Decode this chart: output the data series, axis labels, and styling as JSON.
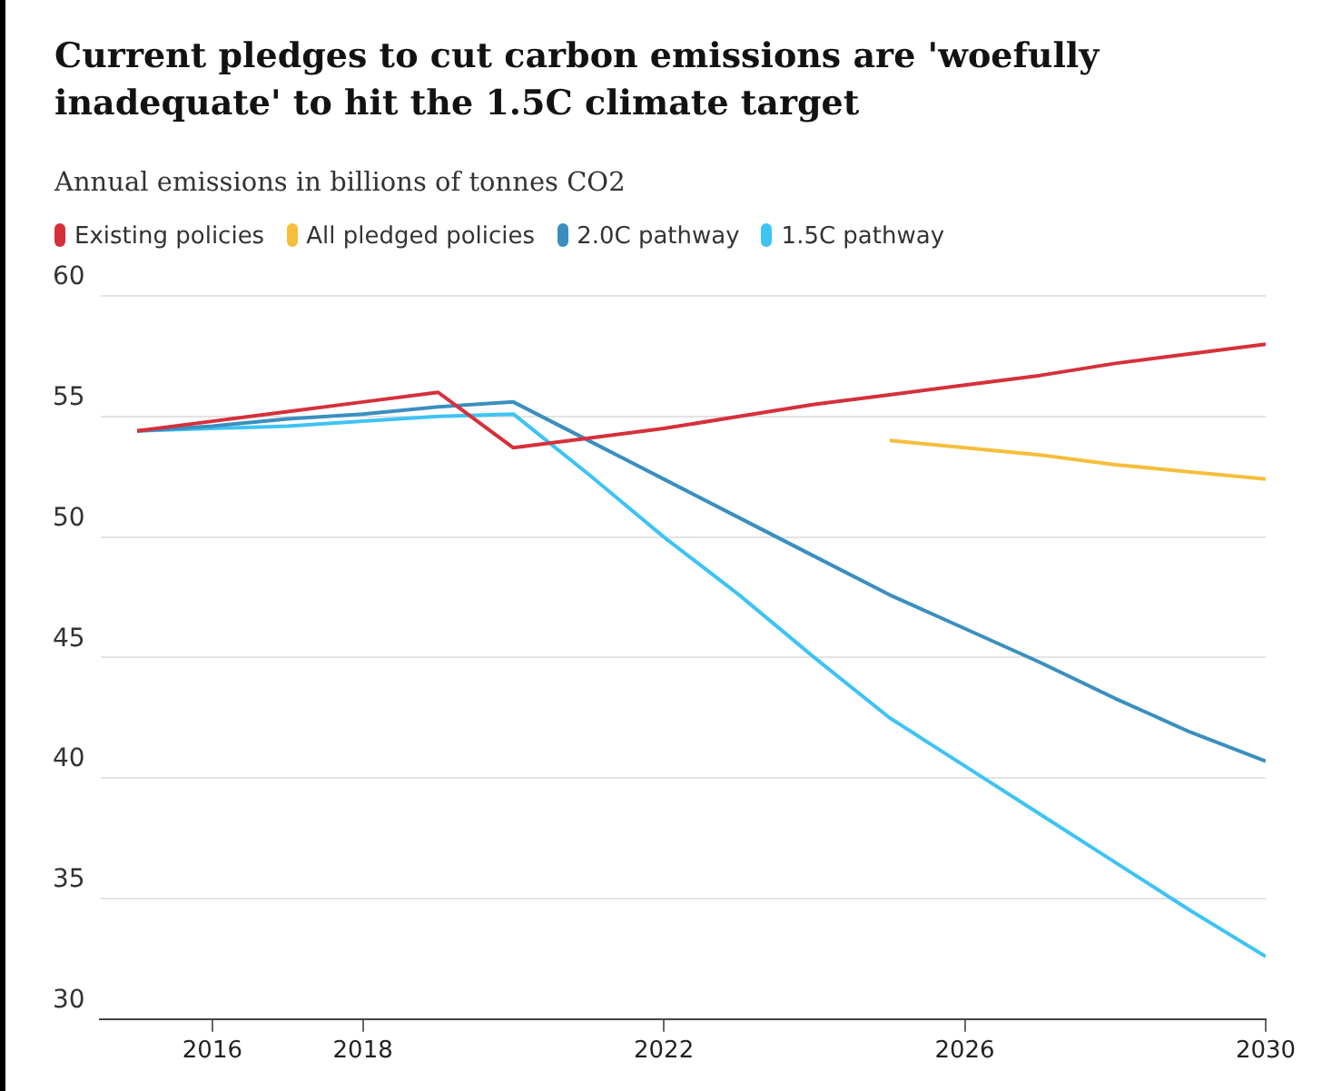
{
  "chart_data": {
    "type": "line",
    "title": "Current pledges to cut carbon emissions are 'woefully inadequate' to hit the 1.5C climate target",
    "subtitle": "Annual emissions in billions of tonnes CO2",
    "x": [
      2015,
      2016,
      2017,
      2018,
      2019,
      2020,
      2021,
      2022,
      2023,
      2024,
      2025,
      2026,
      2027,
      2028,
      2029,
      2030
    ],
    "series": [
      {
        "name": "Existing policies",
        "color": "#d6303b",
        "values": [
          54.4,
          54.8,
          55.2,
          55.6,
          56.0,
          53.7,
          54.1,
          54.5,
          55.0,
          55.5,
          55.9,
          56.3,
          56.7,
          57.2,
          57.6,
          58.0
        ]
      },
      {
        "name": "All pledged policies",
        "color": "#f5be3b",
        "values": [
          null,
          null,
          null,
          null,
          null,
          null,
          null,
          null,
          null,
          null,
          54.0,
          53.7,
          53.4,
          53.0,
          52.7,
          52.4
        ]
      },
      {
        "name": "2.0C pathway",
        "color": "#3a8fbf",
        "values": [
          54.4,
          54.6,
          54.9,
          55.1,
          55.4,
          55.6,
          54.0,
          52.4,
          50.8,
          49.2,
          47.6,
          46.2,
          44.8,
          43.3,
          41.9,
          40.7
        ]
      },
      {
        "name": "1.5C pathway",
        "color": "#3ec3f5",
        "values": [
          54.4,
          54.5,
          54.6,
          54.8,
          55.0,
          55.1,
          52.6,
          50.0,
          47.6,
          45.0,
          42.5,
          40.5,
          38.5,
          36.5,
          34.5,
          32.6
        ]
      }
    ],
    "xlim": [
      2014.5,
      2030
    ],
    "xticks": [
      2016,
      2018,
      2022,
      2026,
      2030
    ],
    "ylim": [
      30,
      60
    ],
    "yticks": [
      30,
      35,
      40,
      45,
      50,
      55,
      60
    ],
    "grid": "y",
    "legend": "top left",
    "marker": "none",
    "line_style": "solid"
  }
}
